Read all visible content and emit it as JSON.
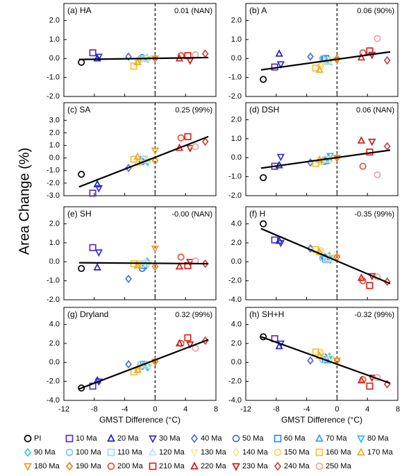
{
  "chart_data": {
    "type": "scatter",
    "ylabel": "Area Change (%)",
    "xlabel": "GMST Difference (°C)",
    "xlim": [
      -12,
      8
    ],
    "xticks": [
      -12,
      -8,
      -4,
      0,
      4,
      8
    ],
    "fit_x": [
      -10,
      7
    ],
    "series": [
      {
        "name": "PI",
        "color": "#000000",
        "marker": "circle"
      },
      {
        "name": "10 Ma",
        "color": "#5a2bd4",
        "marker": "square"
      },
      {
        "name": "20 Ma",
        "color": "#1c1cc8",
        "marker": "triangle"
      },
      {
        "name": "30 Ma",
        "color": "#2e2ed4",
        "marker": "dtriangle"
      },
      {
        "name": "40 Ma",
        "color": "#5070d8",
        "marker": "diamond"
      },
      {
        "name": "50 Ma",
        "color": "#3a6fd0",
        "marker": "circle"
      },
      {
        "name": "60 Ma",
        "color": "#2a8ee0",
        "marker": "square"
      },
      {
        "name": "70 Ma",
        "color": "#36a0e8",
        "marker": "triangle"
      },
      {
        "name": "80 Ma",
        "color": "#30b8e8",
        "marker": "dtriangle"
      },
      {
        "name": "90 Ma",
        "color": "#3cc8e0",
        "marker": "diamond"
      },
      {
        "name": "100 Ma",
        "color": "#70c8f0",
        "marker": "circle"
      },
      {
        "name": "110 Ma",
        "color": "#a0d8f0",
        "marker": "square"
      },
      {
        "name": "120 Ma",
        "color": "#b8e4f4",
        "marker": "triangle"
      },
      {
        "name": "130 Ma",
        "color": "#f4ec9c",
        "marker": "dtriangle"
      },
      {
        "name": "140 Ma",
        "color": "#f4e48c",
        "marker": "diamond"
      },
      {
        "name": "150 Ma",
        "color": "#f6d660",
        "marker": "circle"
      },
      {
        "name": "160 Ma",
        "color": "#f6c030",
        "marker": "square"
      },
      {
        "name": "170 Ma",
        "color": "#f0a820",
        "marker": "triangle"
      },
      {
        "name": "180 Ma",
        "color": "#f09820",
        "marker": "dtriangle"
      },
      {
        "name": "190 Ma",
        "color": "#e88020",
        "marker": "diamond"
      },
      {
        "name": "200 Ma",
        "color": "#e85030",
        "marker": "circle"
      },
      {
        "name": "210 Ma",
        "color": "#e02020",
        "marker": "square"
      },
      {
        "name": "220 Ma",
        "color": "#d81818",
        "marker": "triangle"
      },
      {
        "name": "230 Ma",
        "color": "#c81818",
        "marker": "dtriangle"
      },
      {
        "name": "240 Ma",
        "color": "#d04040",
        "marker": "diamond"
      },
      {
        "name": "250 Ma",
        "color": "#f0a0a0",
        "marker": "circle"
      }
    ],
    "x": [
      -9.7,
      -8.2,
      -7.6,
      -7.4,
      -3.5,
      -1.7,
      -1.5,
      -1.1,
      -0.9,
      -1.0,
      -1.9,
      -1.4,
      -1.2,
      -0.8,
      -2.0,
      -2.2,
      -2.8,
      -2.3,
      0.0,
      0.0,
      3.4,
      4.3,
      3.2,
      4.6,
      6.6,
      5.3
    ],
    "panels": [
      {
        "title": "(a) HA",
        "annotation": "0.01 (NAN)",
        "ylim": [
          -2,
          2.9
        ],
        "yticks": [
          {
            "value": -2,
            "label": "-2.0"
          },
          {
            "value": -1,
            "label": "-1.0"
          },
          {
            "value": 0,
            "label": "0.0"
          },
          {
            "value": 1,
            "label": "1.0"
          },
          {
            "value": 2,
            "label": "2.0"
          }
        ],
        "values": [
          -0.2,
          0.3,
          0.0,
          0.1,
          0.1,
          0.05,
          0.0,
          0.0,
          0.0,
          0.0,
          0.0,
          0.0,
          0.0,
          0.0,
          -0.1,
          -0.1,
          -0.4,
          -0.2,
          0.0,
          0.0,
          0.15,
          0.15,
          0.0,
          -0.1,
          0.25,
          0.2
        ],
        "fit": [
          -0.05,
          0.05
        ]
      },
      {
        "title": "(b) A",
        "annotation": "0.06 (90%)",
        "ylim": [
          -2,
          2.9
        ],
        "yticks": [
          {
            "value": -2,
            "label": "-2.0"
          },
          {
            "value": -1,
            "label": "-1.0"
          },
          {
            "value": 0,
            "label": "0.0"
          },
          {
            "value": 1,
            "label": "1.0"
          },
          {
            "value": 2,
            "label": "2.0"
          }
        ],
        "values": [
          -1.1,
          -0.45,
          0.25,
          -0.3,
          0.1,
          0.0,
          0.0,
          -0.2,
          -0.1,
          -0.1,
          0.0,
          -0.1,
          -0.2,
          -0.1,
          -0.3,
          -0.4,
          -0.5,
          -0.6,
          -0.1,
          0.0,
          0.3,
          0.4,
          0.05,
          0.2,
          -0.1,
          1.05
        ],
        "fit": [
          -0.6,
          0.35
        ]
      },
      {
        "title": "(c) SA",
        "annotation": "0.25 (99%)",
        "ylim": [
          -3,
          4.4
        ],
        "yticks": [
          {
            "value": -3,
            "label": "-3.0"
          },
          {
            "value": -2,
            "label": "-2.0"
          },
          {
            "value": -1,
            "label": "-1.0"
          },
          {
            "value": 0,
            "label": "0.0"
          },
          {
            "value": 1,
            "label": "1.0"
          },
          {
            "value": 2,
            "label": "2.0"
          },
          {
            "value": 3,
            "label": "3.0"
          }
        ],
        "values": [
          -1.3,
          -2.8,
          -2.1,
          -2.4,
          -0.8,
          -0.3,
          -0.1,
          -0.2,
          -0.3,
          -0.3,
          -0.3,
          -0.1,
          -0.2,
          -0.2,
          -0.3,
          -0.4,
          -0.1,
          0.1,
          0.6,
          -0.2,
          1.6,
          1.7,
          0.8,
          0.8,
          1.3,
          0.9
        ],
        "fit": [
          -2.3,
          1.7
        ]
      },
      {
        "title": "(d) DSH",
        "annotation": "0.06 (NAN)",
        "ylim": [
          -2,
          2.9
        ],
        "yticks": [
          {
            "value": -2,
            "label": "-2.0"
          },
          {
            "value": -1,
            "label": "-1.0"
          },
          {
            "value": 0,
            "label": "0.0"
          },
          {
            "value": 1,
            "label": "1.0"
          },
          {
            "value": 2,
            "label": "2.0"
          }
        ],
        "values": [
          -1.05,
          -0.45,
          -0.4,
          0.05,
          -0.25,
          -0.2,
          -0.15,
          0.0,
          0.1,
          -0.1,
          -0.2,
          -0.1,
          -0.1,
          -0.1,
          -0.2,
          -0.2,
          -0.3,
          -0.1,
          0.0,
          0.0,
          -0.45,
          0.3,
          0.9,
          0.85,
          0.6,
          -0.9
        ],
        "fit": [
          -0.55,
          0.4
        ]
      },
      {
        "title": "(e) SH",
        "annotation": "-0.00 (NAN)",
        "ylim": [
          -2,
          2.9
        ],
        "yticks": [
          {
            "value": -2,
            "label": "-2.0"
          },
          {
            "value": -1,
            "label": "-1.0"
          },
          {
            "value": 0,
            "label": "0.0"
          },
          {
            "value": 1,
            "label": "1.0"
          },
          {
            "value": 2,
            "label": "2.0"
          }
        ],
        "values": [
          -0.35,
          0.75,
          -0.3,
          0.5,
          -0.9,
          -0.35,
          -0.2,
          0.0,
          -0.1,
          0.0,
          -0.2,
          -0.1,
          0.0,
          -0.1,
          -0.1,
          -0.1,
          -0.1,
          -0.2,
          0.7,
          -0.25,
          0.25,
          -0.2,
          -0.25,
          0.0,
          -0.1,
          0.05
        ],
        "fit": [
          -0.05,
          -0.1
        ]
      },
      {
        "title": "(f) H",
        "annotation": "-0.35 (99%)",
        "ylim": [
          -4,
          5.8
        ],
        "yticks": [
          {
            "value": -4,
            "label": "-4.0"
          },
          {
            "value": -2,
            "label": "-2.0"
          },
          {
            "value": 0,
            "label": "0.0"
          },
          {
            "value": 2,
            "label": "2.0"
          },
          {
            "value": 4,
            "label": "4.0"
          }
        ],
        "values": [
          4.0,
          2.3,
          2.2,
          2.0,
          1.4,
          0.5,
          0.3,
          0.5,
          0.2,
          0.6,
          0.4,
          0.2,
          0.3,
          0.5,
          1.0,
          1.2,
          1.3,
          1.0,
          0.4,
          0.5,
          -2.0,
          -2.5,
          -1.7,
          -1.5,
          -2.1,
          -1.6
        ],
        "fit": [
          3.5,
          -2.3
        ]
      },
      {
        "title": "(g) Dryland",
        "annotation": "0.32 (99%)",
        "ylim": [
          -4,
          5.8
        ],
        "yticks": [
          {
            "value": -4,
            "label": "-4.0"
          },
          {
            "value": -2,
            "label": "-2.0"
          },
          {
            "value": 0,
            "label": "0.0"
          },
          {
            "value": 2,
            "label": "2.0"
          },
          {
            "value": 4,
            "label": "4.0"
          }
        ],
        "values": [
          -2.7,
          -2.5,
          -1.9,
          -2.0,
          -0.2,
          -0.4,
          -0.2,
          -0.3,
          -0.5,
          -0.5,
          -0.2,
          -0.3,
          -0.2,
          -0.3,
          -0.5,
          -0.7,
          -1.0,
          -0.8,
          0.1,
          0.1,
          2.0,
          2.6,
          2.0,
          1.9,
          2.3,
          1.5
        ],
        "fit": [
          -2.8,
          2.4
        ]
      },
      {
        "title": "(h) SH+H",
        "annotation": "-0.32 (99%)",
        "ylim": [
          -4,
          5.8
        ],
        "yticks": [
          {
            "value": -4,
            "label": "-4.0"
          },
          {
            "value": -2,
            "label": "-2.0"
          },
          {
            "value": 0,
            "label": "0.0"
          },
          {
            "value": 2,
            "label": "2.0"
          },
          {
            "value": 4,
            "label": "4.0"
          }
        ],
        "values": [
          2.7,
          2.5,
          1.7,
          2.0,
          0.2,
          0.6,
          0.3,
          0.5,
          0.3,
          0.6,
          0.3,
          0.2,
          0.4,
          0.5,
          0.9,
          1.1,
          1.1,
          0.7,
          0.2,
          0.2,
          -1.8,
          -2.5,
          -1.9,
          -1.6,
          -2.3,
          -1.6
        ],
        "fit": [
          2.7,
          -2.2
        ]
      }
    ]
  }
}
